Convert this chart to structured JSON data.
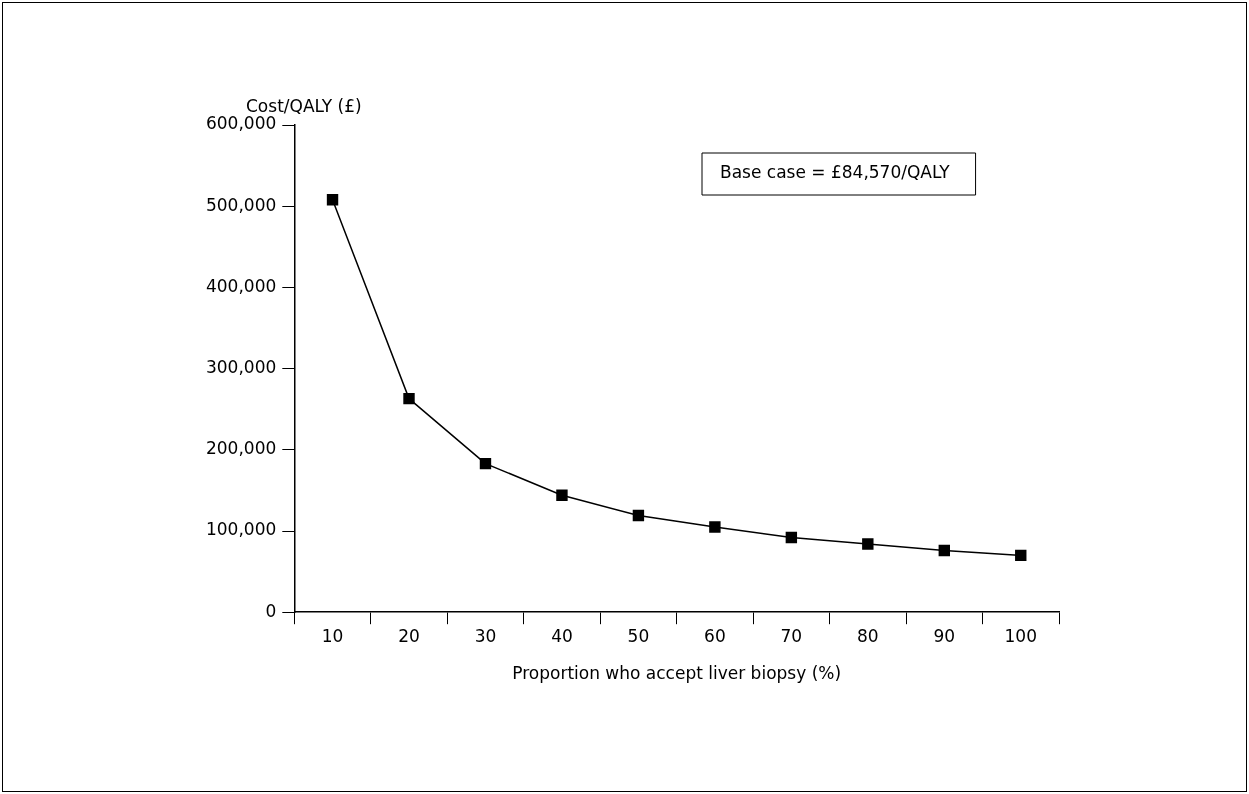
{
  "chart_data": {
    "type": "line",
    "xlabel": "Proportion who accept liver biopsy (%)",
    "ylabel": "Cost/QALY (£)",
    "categories": [
      "10",
      "20",
      "30",
      "40",
      "50",
      "60",
      "70",
      "80",
      "90",
      "100"
    ],
    "series": [
      {
        "color": "#000000",
        "values": [
          508000,
          263000,
          183000,
          144000,
          119000,
          105000,
          92000,
          84000,
          76000,
          70000
        ]
      }
    ],
    "ylim": [
      0,
      600000
    ],
    "yticks": [
      {
        "value": 0,
        "label": "0"
      },
      {
        "value": 100000,
        "label": "100,000"
      },
      {
        "value": 200000,
        "label": "200,000"
      },
      {
        "value": 300000,
        "label": "300,000"
      },
      {
        "value": 400000,
        "label": "400,000"
      },
      {
        "value": 500000,
        "label": "500,000"
      },
      {
        "value": 600000,
        "label": "600,000"
      }
    ],
    "annotations": [
      "Base case = £84,570/QALY"
    ],
    "grid": false,
    "legend": false,
    "marker": "square",
    "line_style": "solid"
  }
}
